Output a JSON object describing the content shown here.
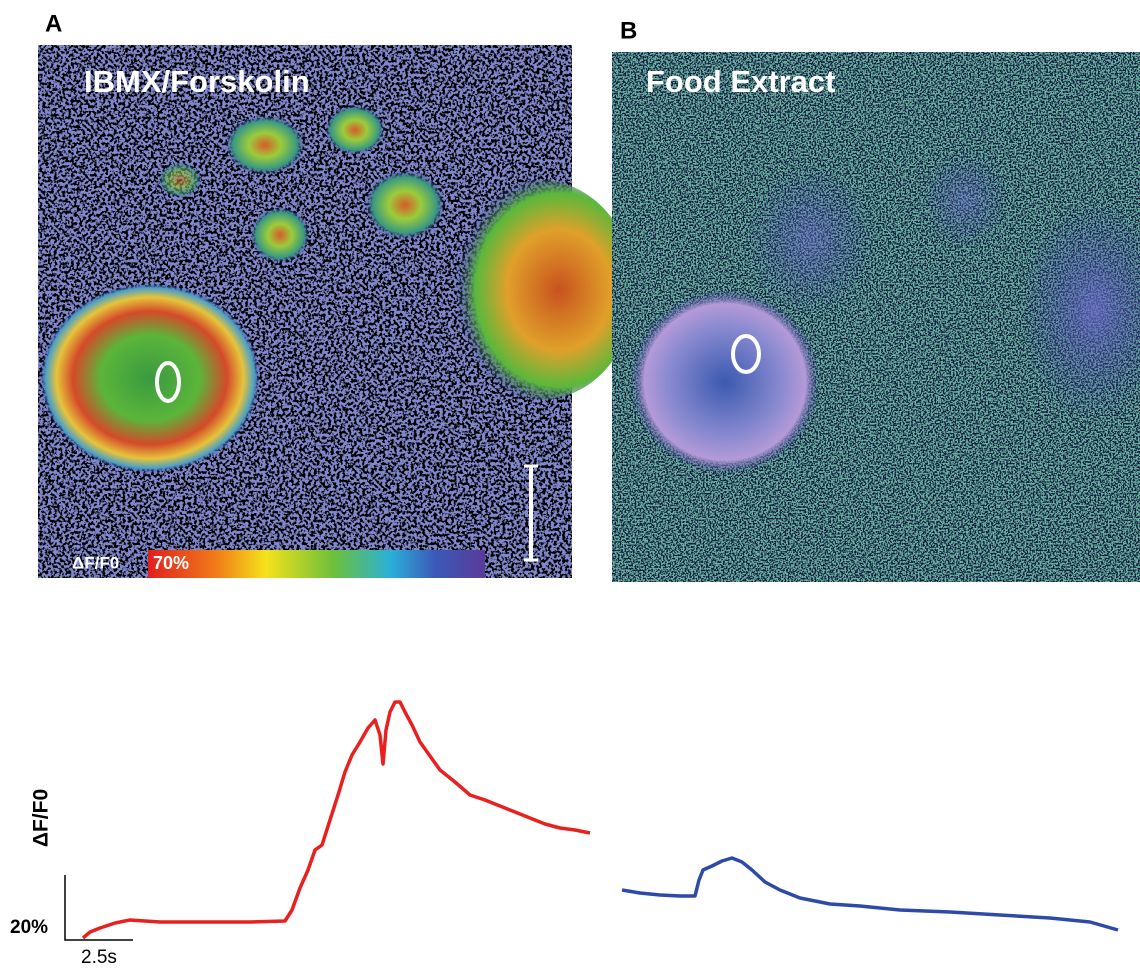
{
  "panels": [
    {
      "label": "A",
      "title": "IBMX/Forskolin",
      "colorbar": {
        "label": "ΔF/F0",
        "max_label": "70%"
      }
    },
    {
      "label": "B",
      "title": "Food Extract"
    }
  ],
  "scale_bar": {
    "y_label": "ΔF/F0",
    "y_size": "20%",
    "x_size": "2.5s"
  }
}
